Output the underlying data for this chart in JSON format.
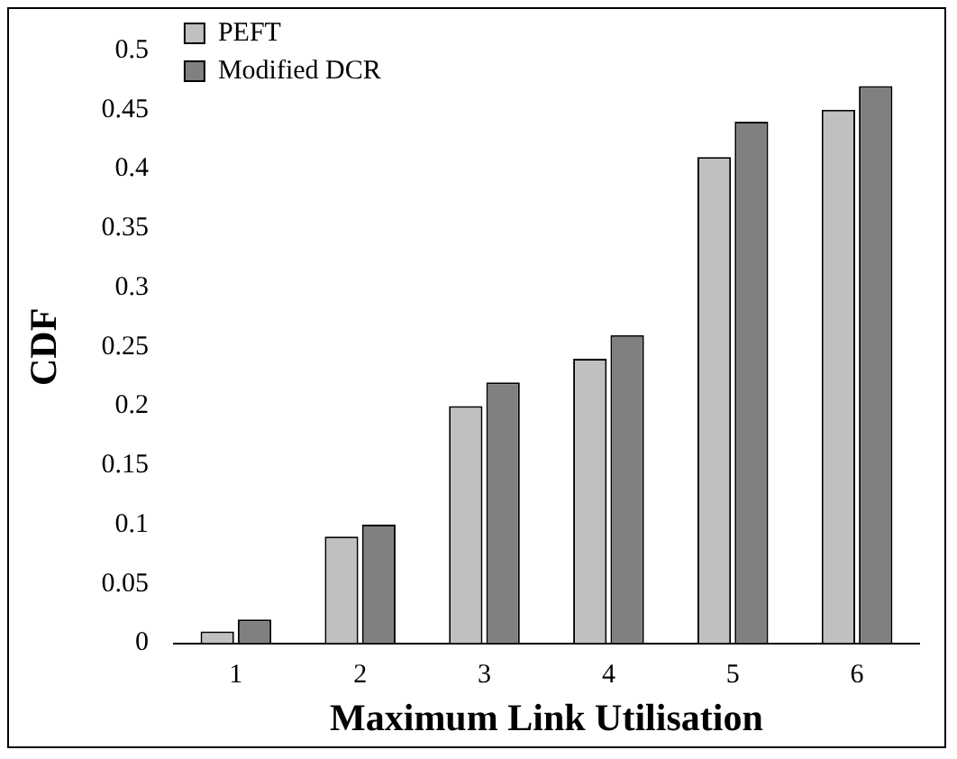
{
  "chart_data": {
    "type": "bar",
    "xlabel": "Maximum Link Utilisation",
    "ylabel": "CDF",
    "categories": [
      "1",
      "2",
      "3",
      "4",
      "5",
      "6"
    ],
    "series": [
      {
        "name": "PEFT",
        "color": "#c0c0c0",
        "values": [
          0.01,
          0.09,
          0.2,
          0.24,
          0.41,
          0.45
        ]
      },
      {
        "name": "Modified DCR",
        "color": "#808080",
        "values": [
          0.02,
          0.1,
          0.22,
          0.26,
          0.44,
          0.47
        ]
      }
    ],
    "ylim": [
      0,
      0.5
    ],
    "yticks": [
      0,
      0.05,
      0.1,
      0.15,
      0.2,
      0.25,
      0.3,
      0.35,
      0.4,
      0.45,
      0.5
    ],
    "grid": false,
    "legend": "top left"
  }
}
